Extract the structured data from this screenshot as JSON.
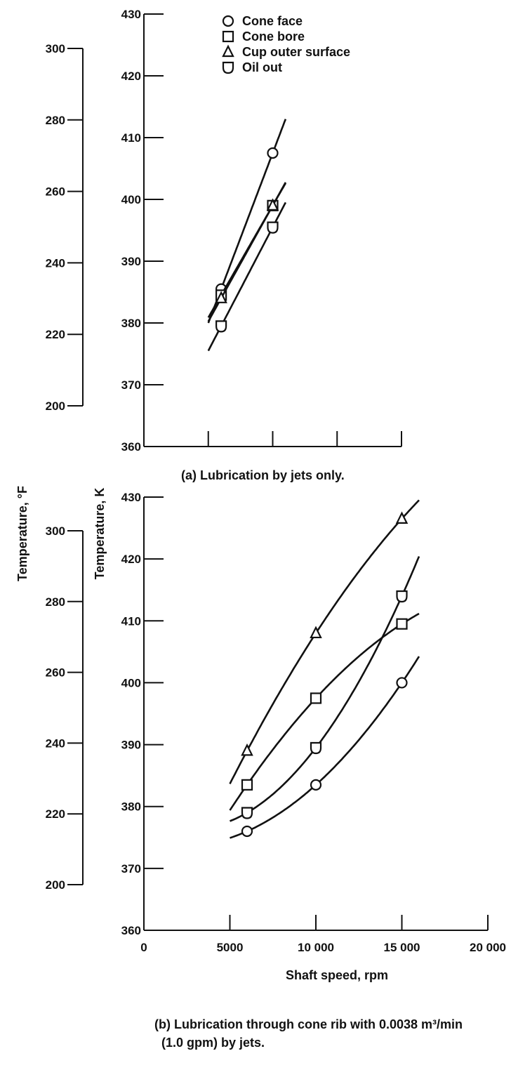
{
  "legend": [
    {
      "label": "Cone face",
      "marker": "circle"
    },
    {
      "label": "Cone bore",
      "marker": "square"
    },
    {
      "label": "Cup outer surface",
      "marker": "triangle"
    },
    {
      "label": "Oil out",
      "marker": "shield"
    }
  ],
  "y_left_label": "Temperature, °F",
  "y_right_label": "Temperature, K",
  "chart_data": [
    {
      "type": "line",
      "caption": "(a) Lubrication by jets only.",
      "ylabel": "Temperature, K",
      "y2label": "Temperature, °F",
      "ylim": [
        360,
        430
      ],
      "y2lim": [
        188.33,
        314.33
      ],
      "yticks": [
        "360",
        "370",
        "380",
        "390",
        "400",
        "410",
        "420",
        "430"
      ],
      "y2ticks": [
        "200",
        "220",
        "240",
        "260",
        "280",
        "300"
      ],
      "xlim": [
        0,
        20000
      ],
      "grid": false,
      "series": [
        {
          "name": "Cone face",
          "marker": "circle",
          "x": [
            6000,
            10000
          ],
          "y": [
            385.5,
            407.5
          ]
        },
        {
          "name": "Cone bore",
          "marker": "square",
          "x": [
            6000,
            10000
          ],
          "y": [
            384.5,
            399
          ]
        },
        {
          "name": "Cup outer surface",
          "marker": "triangle",
          "x": [
            6000,
            10000
          ],
          "y": [
            384,
            399
          ]
        },
        {
          "name": "Oil out",
          "marker": "shield",
          "x": [
            6000,
            10000
          ],
          "y": [
            379.5,
            395.5
          ]
        }
      ]
    },
    {
      "type": "line",
      "caption": "(b) Lubrication through cone rib with 0.0038 m³/min (1.0 gpm) by jets.",
      "xlabel": "Shaft speed, rpm",
      "ylabel": "Temperature, K",
      "y2label": "Temperature, °F",
      "ylim": [
        360,
        430
      ],
      "y2lim": [
        188.33,
        314.33
      ],
      "yticks": [
        "360",
        "370",
        "380",
        "390",
        "400",
        "410",
        "420",
        "430"
      ],
      "y2ticks": [
        "200",
        "220",
        "240",
        "260",
        "280",
        "300"
      ],
      "xlim": [
        0,
        20000
      ],
      "xticks": [
        "0",
        "5000",
        "10 000",
        "15 000",
        "20 000"
      ],
      "grid": false,
      "series": [
        {
          "name": "Cone face",
          "marker": "circle",
          "x": [
            6000,
            10000,
            15000
          ],
          "y": [
            376,
            383.5,
            400
          ]
        },
        {
          "name": "Cone bore",
          "marker": "square",
          "x": [
            6000,
            10000,
            15000
          ],
          "y": [
            383.5,
            397.5,
            409.5
          ]
        },
        {
          "name": "Cup outer surface",
          "marker": "triangle",
          "x": [
            6000,
            10000,
            15000
          ],
          "y": [
            389,
            408,
            426.5
          ]
        },
        {
          "name": "Oil out",
          "marker": "shield",
          "x": [
            6000,
            10000,
            15000
          ],
          "y": [
            379,
            389.5,
            414
          ]
        }
      ]
    }
  ]
}
